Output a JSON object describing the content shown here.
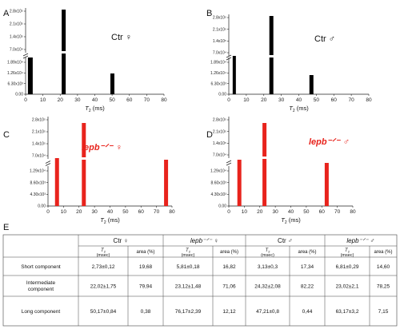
{
  "chart_data": [
    {
      "type": "bar",
      "panel": "A",
      "annotation": "Ctr ♀",
      "annotation_color": "#111111",
      "bar_color": "#000000",
      "x": [
        2.73,
        22.02,
        50.17
      ],
      "area_percent": [
        19.68,
        79.94,
        0.38
      ],
      "xlabel_main": "T",
      "xlabel_sub": "2",
      "xlabel_unit": " (ms)",
      "xlim": [
        0,
        80
      ],
      "xticks": [
        "0",
        "10",
        "20",
        "30",
        "40",
        "50",
        "60",
        "70",
        "80"
      ],
      "yticks_lower": [
        "0.00",
        "6.30x10³",
        "1.26x10⁴",
        "1.89x10⁴"
      ],
      "yticks_upper": [
        "7.0x10⁴",
        "1.4x10⁵",
        "2.1x10⁵",
        "2.8x10⁵"
      ]
    },
    {
      "type": "bar",
      "panel": "B",
      "annotation": "Ctr ♂",
      "annotation_color": "#111111",
      "bar_color": "#000000",
      "x": [
        3.13,
        24.32,
        47.21
      ],
      "area_percent": [
        17.34,
        82.22,
        0.44
      ],
      "xlabel_main": "T",
      "xlabel_sub": "2",
      "xlabel_unit": " (ms)",
      "xlim": [
        0,
        80
      ],
      "xticks": [
        "0",
        "10",
        "20",
        "30",
        "40",
        "50",
        "60",
        "70",
        "80"
      ],
      "yticks_lower": [
        "0.00",
        "6.30x10³",
        "1.26x10⁴",
        "1.89x10⁴"
      ],
      "yticks_upper": [
        "7.0x10⁴",
        "1.4x10⁵",
        "2.1x10⁵",
        "2.8x10⁵"
      ]
    },
    {
      "type": "bar",
      "panel": "C",
      "annotation": "lepb⁻ᐟ⁻ ♀",
      "annotation_color": "#e8231c",
      "bar_color": "#e8231c",
      "x": [
        5.81,
        23.12,
        76.17
      ],
      "area_percent": [
        16.82,
        71.06,
        12.12
      ],
      "xlabel_main": "T",
      "xlabel_sub": "2",
      "xlabel_unit": " (ms)",
      "xlim": [
        0,
        80
      ],
      "xticks": [
        "0",
        "10",
        "20",
        "30",
        "40",
        "50",
        "60",
        "70",
        "80"
      ],
      "yticks_lower": [
        "0.00",
        "4.30x10³",
        "8.60x10³",
        "1.29x10⁴"
      ],
      "yticks_upper": [
        "7.0x10⁴",
        "1.4x10⁵",
        "2.1x10⁵",
        "2.8x10⁵"
      ]
    },
    {
      "type": "bar",
      "panel": "D",
      "annotation": "lepb⁻ᐟ⁻ ♂",
      "annotation_color": "#e8231c",
      "bar_color": "#e8231c",
      "x": [
        6.81,
        23.02,
        63.17
      ],
      "area_percent": [
        14.6,
        78.25,
        7.15
      ],
      "xlabel_main": "T",
      "xlabel_sub": "2",
      "xlabel_unit": " (ms)",
      "xlim": [
        0,
        80
      ],
      "xticks": [
        "0",
        "10",
        "20",
        "30",
        "40",
        "50",
        "60",
        "70",
        "80"
      ],
      "yticks_lower": [
        "0.00",
        "4.30x10³",
        "8.60x10³",
        "1.29x10⁴"
      ],
      "yticks_upper": [
        "7.0x10⁴",
        "1.4x10⁵",
        "2.1x10⁵",
        "2.8x10⁵"
      ]
    }
  ],
  "table": {
    "panel": "E",
    "groups": [
      "Ctr ♀",
      "lepb⁻ᐟ⁻ ♀",
      "Ctr ♂",
      "lepb⁻ᐟ⁻ ♂"
    ],
    "sub_t2_main": "T",
    "sub_t2_sub": "2",
    "sub_t2_unit": "(msec)",
    "sub_area": "area (%)",
    "rows": [
      {
        "label": [
          "Short component"
        ],
        "cells": [
          "2,73±0,12",
          "19,68",
          "5,81±0,18",
          "16,82",
          "3,13±0,3",
          "17,34",
          "6,81±0,29",
          "14,60"
        ]
      },
      {
        "label": [
          "Intermediate",
          "component"
        ],
        "cells": [
          "22,02±1,75",
          "79,94",
          "23,12±1,48",
          "71,06",
          "24,32±2,08",
          "82,22",
          "23,02±2,1",
          "78,25"
        ]
      },
      {
        "label": [
          "Long component"
        ],
        "cells": [
          "50,17±0,84",
          "0,38",
          "76,17±2,39",
          "12,12",
          "47,21±0,8",
          "0,44",
          "63,17±3,2",
          "7,15"
        ]
      }
    ]
  }
}
